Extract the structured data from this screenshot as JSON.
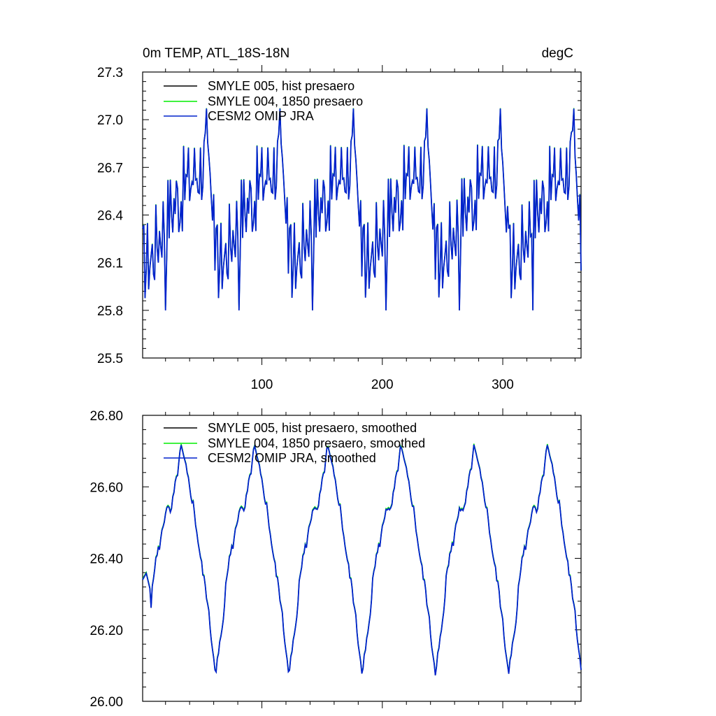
{
  "chart_data": [
    {
      "type": "line",
      "title": "0m TEMP, ATL_18S-18N",
      "units": "degC",
      "xlabel": "",
      "ylabel": "",
      "xlim": [
        1,
        365
      ],
      "ylim": [
        25.5,
        27.3
      ],
      "yticks": [
        25.5,
        25.8,
        26.1,
        26.4,
        26.7,
        27.0,
        27.3
      ],
      "ytick_labels": [
        "25.5",
        "25.8",
        "26.1",
        "26.4",
        "26.7",
        "27.0",
        "27.3"
      ],
      "xticks": [
        100,
        200,
        300
      ],
      "xtick_labels": [
        "100",
        "200",
        "300"
      ],
      "legend_location": "top-left",
      "series_style": "noisy",
      "series": [
        {
          "name": "SMYLE 005, hist presaero",
          "color": "#000000"
        },
        {
          "name": "SMYLE 004, 1850 presaero",
          "color": "#00ee00"
        },
        {
          "name": "CESM2 OMIP JRA",
          "color": "#0022cc"
        }
      ],
      "cycle_period": 60.8,
      "cycle_key_points": [
        [
          0,
          26.1
        ],
        [
          8,
          26.15
        ],
        [
          16,
          26.35
        ],
        [
          28,
          26.5
        ],
        [
          38,
          26.6
        ],
        [
          46,
          26.7
        ],
        [
          52,
          26.75
        ],
        [
          56,
          26.55
        ],
        [
          60.8,
          26.1
        ]
      ],
      "min_value": 25.8,
      "max_value": 27.07
    },
    {
      "type": "line",
      "title": "",
      "xlabel": "",
      "ylabel": "",
      "xlim": [
        1,
        365
      ],
      "ylim": [
        26.0,
        26.8
      ],
      "yticks": [
        26.0,
        26.2,
        26.4,
        26.6,
        26.8
      ],
      "ytick_labels": [
        "26.00",
        "26.20",
        "26.40",
        "26.60",
        "26.80"
      ],
      "xticks": [
        100,
        200,
        300
      ],
      "xtick_labels": [],
      "legend_location": "top-left",
      "series_style": "smooth",
      "series": [
        {
          "name": "SMYLE 005, hist presaero, smoothed",
          "color": "#000000"
        },
        {
          "name": "SMYLE 004, 1850 presaero, smoothed",
          "color": "#00ee00"
        },
        {
          "name": "CESM2 OMIP JRA, smoothed",
          "color": "#0022cc"
        }
      ],
      "cycle_period": 60.8,
      "cycle_key_points": [
        [
          0,
          26.08
        ],
        [
          5,
          26.2
        ],
        [
          10,
          26.38
        ],
        [
          15,
          26.45
        ],
        [
          20,
          26.55
        ],
        [
          23,
          26.52
        ],
        [
          28,
          26.62
        ],
        [
          32,
          26.71
        ],
        [
          36,
          26.65
        ],
        [
          42,
          26.55
        ],
        [
          48,
          26.4
        ],
        [
          53,
          26.3
        ],
        [
          58,
          26.15
        ],
        [
          60.8,
          26.08
        ]
      ],
      "start_value": 26.34,
      "min_value": 26.07,
      "max_value": 26.71
    }
  ]
}
